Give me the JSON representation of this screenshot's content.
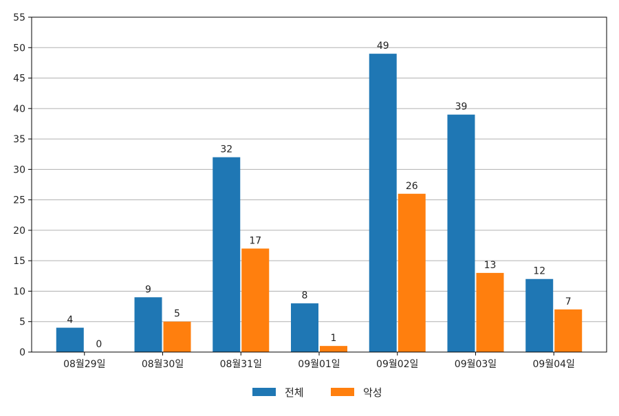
{
  "chart_data": {
    "type": "bar",
    "categories": [
      "08월29일",
      "08월30일",
      "08월31일",
      "09월01일",
      "09월02일",
      "09월03일",
      "09월04일"
    ],
    "series": [
      {
        "name": "전체",
        "color": "#1f77b4",
        "values": [
          4,
          9,
          32,
          8,
          49,
          39,
          12
        ]
      },
      {
        "name": "악성",
        "color": "#ff7f0e",
        "values": [
          0,
          5,
          17,
          1,
          26,
          13,
          7
        ]
      }
    ],
    "ylim": [
      0,
      55
    ],
    "yticks": [
      0,
      5,
      10,
      15,
      20,
      25,
      30,
      35,
      40,
      45,
      50,
      55
    ],
    "grid": true,
    "legend_position": "bottom-center",
    "data_labels": true
  }
}
